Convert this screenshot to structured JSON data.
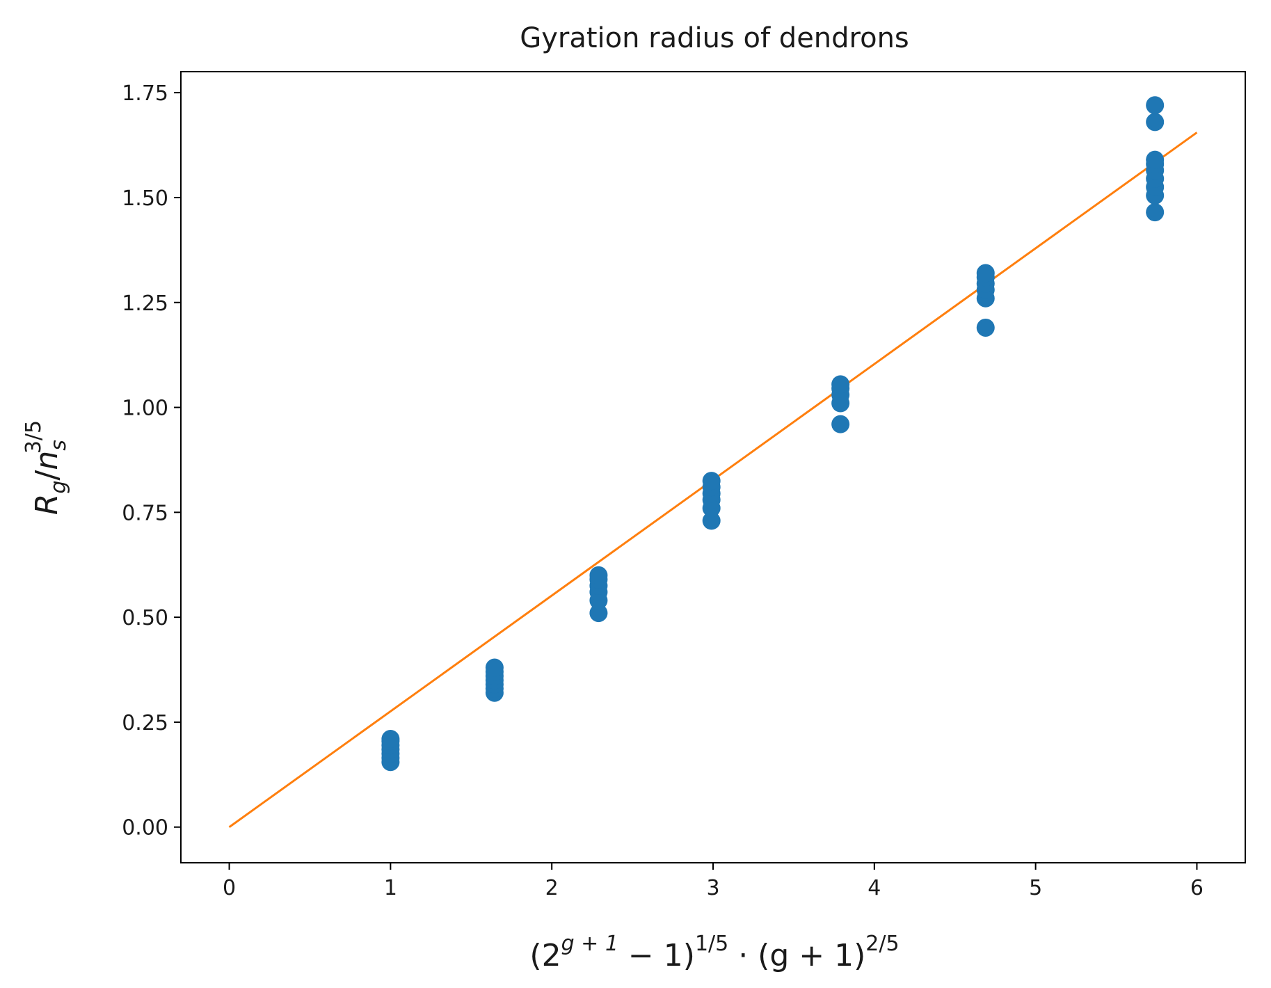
{
  "chart_data": {
    "type": "scatter",
    "title": "Gyration radius of dendrons",
    "xlabel": {
      "base": "(2",
      "exp1": "g + 1",
      "mid": " − 1)",
      "exp2": "1/5",
      "mid2": " · (g + 1)",
      "exp3": "2/5"
    },
    "ylabel": {
      "r": "R",
      "r_sub": "g",
      "slash": "/",
      "n": "n",
      "n_sub": "s",
      "n_sup": "3/5"
    },
    "xlim": [
      -0.3,
      6.3
    ],
    "ylim": [
      -0.085,
      1.8
    ],
    "xticks": [
      0,
      1,
      2,
      3,
      4,
      5,
      6
    ],
    "xtick_labels": [
      "0",
      "1",
      "2",
      "3",
      "4",
      "5",
      "6"
    ],
    "yticks": [
      0.0,
      0.25,
      0.5,
      0.75,
      1.0,
      1.25,
      1.5,
      1.75
    ],
    "ytick_labels": [
      "0.00",
      "0.25",
      "0.50",
      "0.75",
      "1.00",
      "1.25",
      "1.50",
      "1.75"
    ],
    "grid": false,
    "colors": {
      "points": "#1f77b4",
      "fit": "#ff7f0e",
      "axes": "#000000"
    },
    "points": [
      [
        1.0,
        0.155
      ],
      [
        1.0,
        0.165
      ],
      [
        1.0,
        0.175
      ],
      [
        1.0,
        0.185
      ],
      [
        1.0,
        0.195
      ],
      [
        1.0,
        0.205
      ],
      [
        1.0,
        0.21
      ],
      [
        1.645,
        0.32
      ],
      [
        1.645,
        0.33
      ],
      [
        1.645,
        0.34
      ],
      [
        1.645,
        0.35
      ],
      [
        1.645,
        0.36
      ],
      [
        1.645,
        0.37
      ],
      [
        1.645,
        0.38
      ],
      [
        2.29,
        0.51
      ],
      [
        2.29,
        0.54
      ],
      [
        2.29,
        0.56
      ],
      [
        2.29,
        0.575
      ],
      [
        2.29,
        0.59
      ],
      [
        2.29,
        0.6
      ],
      [
        2.99,
        0.73
      ],
      [
        2.99,
        0.76
      ],
      [
        2.99,
        0.78
      ],
      [
        2.99,
        0.795
      ],
      [
        2.99,
        0.81
      ],
      [
        2.99,
        0.825
      ],
      [
        3.79,
        0.96
      ],
      [
        3.79,
        1.01
      ],
      [
        3.79,
        1.03
      ],
      [
        3.79,
        1.045
      ],
      [
        3.79,
        1.055
      ],
      [
        4.69,
        1.19
      ],
      [
        4.69,
        1.26
      ],
      [
        4.69,
        1.28
      ],
      [
        4.69,
        1.295
      ],
      [
        4.69,
        1.31
      ],
      [
        4.69,
        1.32
      ],
      [
        5.74,
        1.465
      ],
      [
        5.74,
        1.505
      ],
      [
        5.74,
        1.525
      ],
      [
        5.74,
        1.545
      ],
      [
        5.74,
        1.565
      ],
      [
        5.74,
        1.58
      ],
      [
        5.74,
        1.59
      ],
      [
        5.74,
        1.68
      ],
      [
        5.74,
        1.72
      ]
    ],
    "fit_line": {
      "x": [
        0,
        6
      ],
      "y": [
        0.0,
        1.655
      ]
    }
  }
}
